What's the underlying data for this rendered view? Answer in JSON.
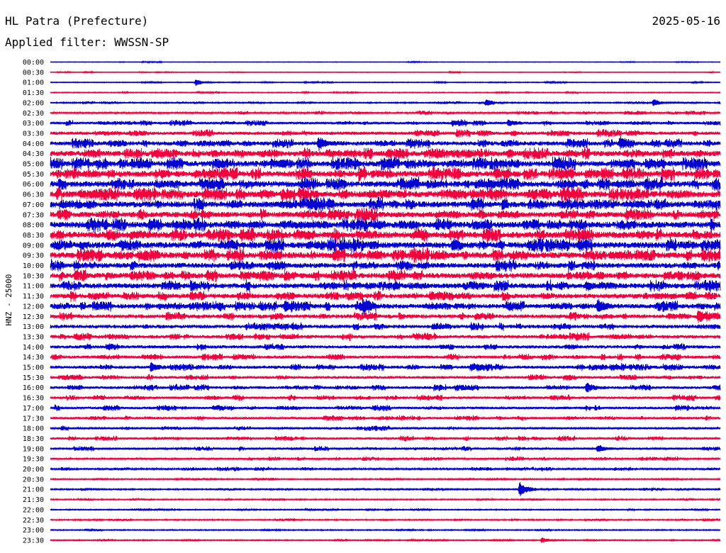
{
  "header": {
    "station": "HL Patra (Prefecture)",
    "date": "2025-05-16",
    "filter_text": "Applied filter: WWSSN-SP",
    "channel_label": "HNZ - 25000"
  },
  "chart_data": {
    "type": "line",
    "row_labels": [
      "00:00",
      "00:30",
      "01:00",
      "01:30",
      "02:00",
      "02:30",
      "03:00",
      "03:30",
      "04:00",
      "04:30",
      "05:00",
      "05:30",
      "06:00",
      "06:30",
      "07:00",
      "07:30",
      "08:00",
      "08:30",
      "09:00",
      "09:30",
      "10:00",
      "10:30",
      "11:00",
      "11:30",
      "12:00",
      "12:30",
      "13:00",
      "13:30",
      "14:00",
      "14:30",
      "15:00",
      "15:30",
      "16:00",
      "16:30",
      "17:00",
      "17:30",
      "18:00",
      "18:30",
      "19:00",
      "19:30",
      "20:00",
      "20:30",
      "21:00",
      "21:30",
      "22:00",
      "22:30",
      "23:00",
      "23:30"
    ],
    "row_colors": [
      "#0000d0",
      "#f0003c"
    ],
    "noise_levels": [
      0.4,
      0.5,
      0.6,
      0.7,
      0.9,
      1.3,
      1.8,
      2.4,
      3.0,
      3.8,
      4.0,
      4.2,
      4.2,
      4.5,
      4.2,
      4.0,
      4.3,
      4.5,
      4.3,
      4.3,
      3.6,
      3.8,
      3.6,
      3.3,
      3.2,
      2.8,
      2.6,
      2.4,
      2.3,
      2.2,
      2.3,
      2.0,
      2.0,
      1.9,
      1.8,
      1.7,
      1.6,
      1.6,
      1.5,
      1.4,
      1.3,
      0.9,
      1.0,
      0.9,
      0.8,
      0.9,
      0.8,
      0.8
    ],
    "events": [
      {
        "row": "01:00",
        "minute": 6.5,
        "amplitude": 5
      },
      {
        "row": "02:00",
        "minute": 19.5,
        "amplitude": 4
      },
      {
        "row": "02:00",
        "minute": 27.0,
        "amplitude": 5
      },
      {
        "row": "03:00",
        "minute": 18.0,
        "amplitude": 4
      },
      {
        "row": "03:00",
        "minute": 20.5,
        "amplitude": 5
      },
      {
        "row": "04:00",
        "minute": 12.0,
        "amplitude": 9
      },
      {
        "row": "04:00",
        "minute": 25.5,
        "amplitude": 5
      },
      {
        "row": "09:00",
        "minute": 18.0,
        "amplitude": 6
      },
      {
        "row": "11:00",
        "minute": 24.0,
        "amplitude": 6
      },
      {
        "row": "12:00",
        "minute": 10.5,
        "amplitude": 7
      },
      {
        "row": "12:00",
        "minute": 14.0,
        "amplitude": 7
      },
      {
        "row": "12:00",
        "minute": 24.5,
        "amplitude": 10
      },
      {
        "row": "12:30",
        "minute": 29.0,
        "amplitude": 9
      },
      {
        "row": "15:00",
        "minute": 4.5,
        "amplitude": 6
      },
      {
        "row": "16:00",
        "minute": 24.0,
        "amplitude": 7
      },
      {
        "row": "19:00",
        "minute": 24.5,
        "amplitude": 6
      },
      {
        "row": "21:00",
        "minute": 21.0,
        "amplitude": 11
      },
      {
        "row": "23:30",
        "minute": 22.0,
        "amplitude": 4
      }
    ]
  }
}
